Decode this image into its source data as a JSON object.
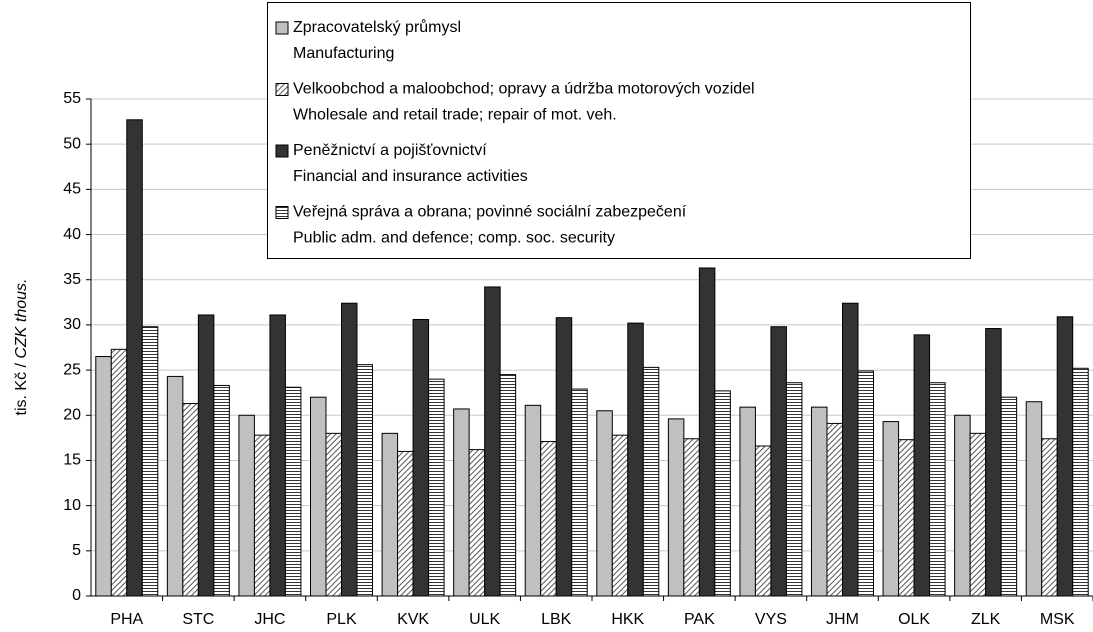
{
  "chart_data": {
    "type": "bar",
    "ylabel": {
      "cz": "tis. Kč /",
      "en": "CZK thous."
    },
    "categories": [
      "PHA",
      "STC",
      "JHC",
      "PLK",
      "KVK",
      "ULK",
      "LBK",
      "HKK",
      "PAK",
      "VYS",
      "JHM",
      "OLK",
      "ZLK",
      "MSK"
    ],
    "series": [
      {
        "name": "Zpracovatelský průmysl",
        "name_en": "Manufacturing",
        "color": "#c0c0c0",
        "pattern": "solid",
        "values": [
          26.5,
          24.3,
          20.0,
          22.0,
          18.0,
          20.7,
          21.1,
          20.5,
          19.6,
          20.9,
          20.9,
          19.3,
          20.0,
          21.5
        ]
      },
      {
        "name": "Velkoobchod a maloobchod; opravy a údržba motorových vozidel",
        "name_en": "Wholesale and retail trade; repair of mot. veh.",
        "color": "#555555",
        "pattern": "diagonal",
        "values": [
          27.3,
          21.3,
          17.8,
          18.0,
          16.0,
          16.2,
          17.1,
          17.8,
          17.4,
          16.6,
          19.1,
          17.3,
          18.0,
          17.4
        ]
      },
      {
        "name": "Peněžnictví a pojišťovnictví",
        "name_en": "Financial and insurance activities",
        "color": "#333333",
        "pattern": "solid",
        "values": [
          52.7,
          31.1,
          31.1,
          32.4,
          30.6,
          34.2,
          30.8,
          30.2,
          36.3,
          29.8,
          32.4,
          28.9,
          29.6,
          30.9
        ]
      },
      {
        "name": "Veřejná správa a obrana; povinné sociální zabezpečení",
        "name_en": "Public adm. and defence; comp. soc. security",
        "color": "#333333",
        "pattern": "horizontal",
        "values": [
          29.8,
          23.3,
          23.1,
          25.6,
          24.0,
          24.5,
          22.9,
          25.3,
          22.7,
          23.6,
          24.9,
          23.6,
          22.0,
          25.2
        ]
      }
    ],
    "ylim": [
      0,
      55
    ],
    "yticks": [
      0,
      5,
      10,
      15,
      20,
      25,
      30,
      35,
      40,
      45,
      50,
      55
    ],
    "grid": true
  }
}
